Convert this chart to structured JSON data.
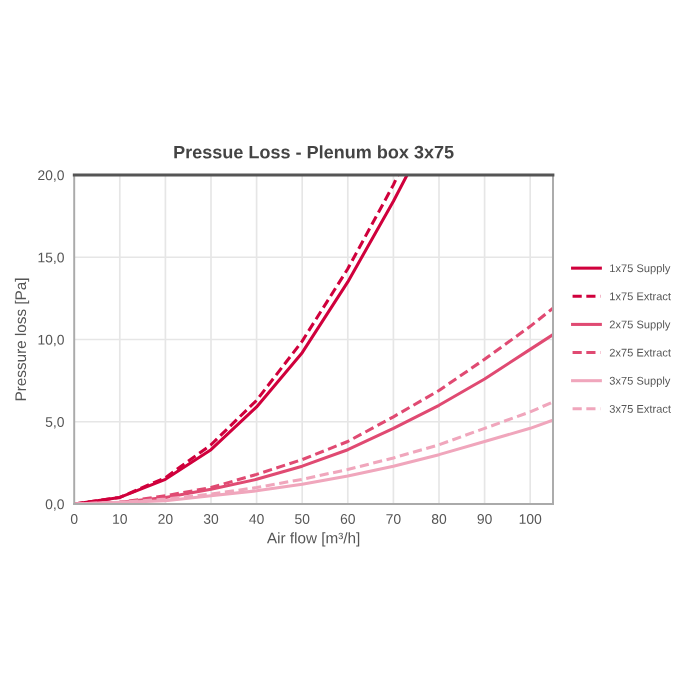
{
  "chart_data": {
    "type": "line",
    "title": "Pressue Loss - Plenum box 3x75",
    "xlabel": "Air flow [m³/h]",
    "ylabel": "Pressure loss [Pa]",
    "xlim": [
      0,
      105
    ],
    "ylim": [
      0,
      20
    ],
    "xticks": [
      0,
      10,
      20,
      30,
      40,
      50,
      60,
      70,
      80,
      90,
      100
    ],
    "yticks": [
      {
        "value": 0,
        "label": "0,0"
      },
      {
        "value": 5,
        "label": "5,0"
      },
      {
        "value": 10,
        "label": "10,0"
      },
      {
        "value": 15,
        "label": "15,0"
      },
      {
        "value": 20,
        "label": "20,0"
      }
    ],
    "grid": true,
    "legend": "right",
    "marker": "none",
    "series": [
      {
        "name": "1x75 Supply",
        "color": "#d0003c",
        "line_style": "solid",
        "x": [
          0,
          10,
          20,
          30,
          40,
          50,
          60,
          70,
          73
        ],
        "values": [
          0,
          0.4,
          1.5,
          3.3,
          5.9,
          9.2,
          13.5,
          18.4,
          20
        ]
      },
      {
        "name": "1x75 Extract",
        "color": "#d0003c",
        "line_style": "dashed",
        "x": [
          0,
          10,
          20,
          30,
          40,
          50,
          60,
          70,
          71
        ],
        "values": [
          0,
          0.4,
          1.6,
          3.6,
          6.3,
          9.9,
          14.3,
          19.4,
          20
        ]
      },
      {
        "name": "2x75 Supply",
        "color": "#e04a72",
        "line_style": "solid",
        "x": [
          0,
          10,
          20,
          30,
          40,
          50,
          60,
          70,
          80,
          90,
          100,
          105
        ],
        "values": [
          0,
          0.1,
          0.4,
          0.9,
          1.5,
          2.3,
          3.3,
          4.6,
          6.0,
          7.6,
          9.4,
          10.3
        ]
      },
      {
        "name": "2x75 Extract",
        "color": "#e04a72",
        "line_style": "dashed",
        "x": [
          0,
          10,
          20,
          30,
          40,
          50,
          60,
          70,
          80,
          90,
          100,
          105
        ],
        "values": [
          0,
          0.1,
          0.5,
          1.0,
          1.8,
          2.7,
          3.8,
          5.3,
          6.9,
          8.8,
          10.8,
          11.9
        ]
      },
      {
        "name": "3x75 Supply",
        "color": "#f0a6bc",
        "line_style": "solid",
        "x": [
          0,
          10,
          20,
          30,
          40,
          50,
          60,
          70,
          80,
          90,
          100,
          105
        ],
        "values": [
          0,
          0.1,
          0.2,
          0.5,
          0.8,
          1.2,
          1.7,
          2.3,
          3.0,
          3.8,
          4.6,
          5.1
        ]
      },
      {
        "name": "3x75 Extract",
        "color": "#f0a6bc",
        "line_style": "dashed",
        "x": [
          0,
          10,
          20,
          30,
          40,
          50,
          60,
          70,
          80,
          90,
          100,
          105
        ],
        "values": [
          0,
          0.1,
          0.3,
          0.6,
          1.0,
          1.5,
          2.1,
          2.8,
          3.6,
          4.6,
          5.6,
          6.2
        ]
      }
    ]
  }
}
